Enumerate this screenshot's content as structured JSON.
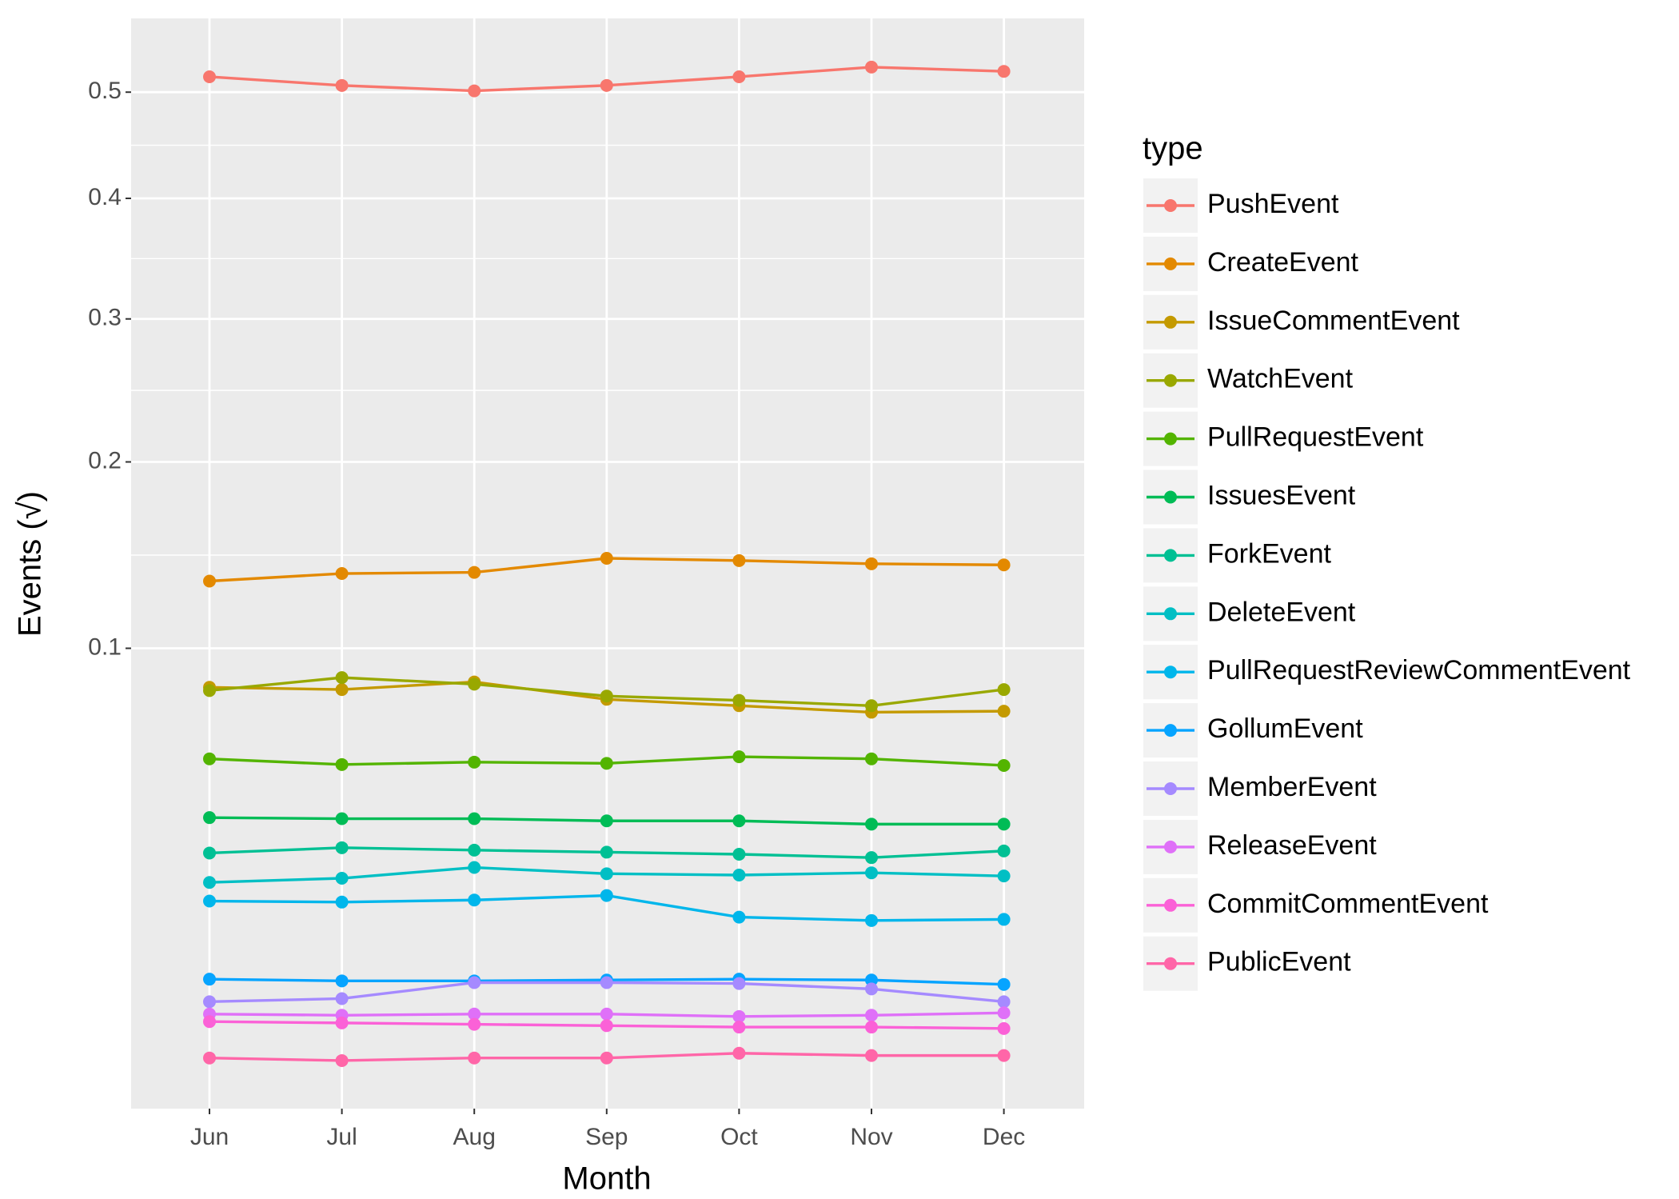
{
  "chart_data": {
    "type": "line",
    "x_label": "Month",
    "y_label": "Events (√)",
    "categories": [
      "Jun",
      "Jul",
      "Aug",
      "Sep",
      "Oct",
      "Nov",
      "Dec"
    ],
    "y_scale": "sqrt",
    "ylim": [
      0,
      0.576
    ],
    "yticks": [
      0.1,
      0.2,
      0.3,
      0.4,
      0.5
    ],
    "grid": true,
    "legend_title": "type",
    "legend_position": "right",
    "series": [
      {
        "name": "PushEvent",
        "color": "#F8766D",
        "values": [
          0.5154,
          0.5067,
          0.5013,
          0.5067,
          0.5154,
          0.5252,
          0.5209
        ]
      },
      {
        "name": "CreateEvent",
        "color": "#E38900",
        "values": [
          0.1321,
          0.136,
          0.1366,
          0.144,
          0.1428,
          0.1411,
          0.1405
        ]
      },
      {
        "name": "IssueCommentEvent",
        "color": "#C49A00",
        "values": [
          0.0834,
          0.0825,
          0.0856,
          0.0786,
          0.0761,
          0.0736,
          0.074
        ]
      },
      {
        "name": "WatchEvent",
        "color": "#99A800",
        "values": [
          0.0821,
          0.0874,
          0.0847,
          0.0799,
          0.0782,
          0.0761,
          0.0825
        ]
      },
      {
        "name": "PullRequestEvent",
        "color": "#53B400",
        "values": [
          0.0569,
          0.055,
          0.0558,
          0.0554,
          0.0576,
          0.0569,
          0.0547
        ]
      },
      {
        "name": "IssuesEvent",
        "color": "#00BC56",
        "values": [
          0.0389,
          0.0386,
          0.0386,
          0.038,
          0.038,
          0.0371,
          0.0371
        ]
      },
      {
        "name": "ForkEvent",
        "color": "#00C094",
        "values": [
          0.0297,
          0.031,
          0.0304,
          0.0299,
          0.0294,
          0.0286,
          0.0302
        ]
      },
      {
        "name": "DeleteEvent",
        "color": "#00BFC4",
        "values": [
          0.023,
          0.0239,
          0.0263,
          0.0249,
          0.0246,
          0.0251,
          0.0244
        ]
      },
      {
        "name": "PullRequestReviewCommentEvent",
        "color": "#00B6EB",
        "values": [
          0.0192,
          0.019,
          0.0194,
          0.0203,
          0.0162,
          0.0156,
          0.0158
        ]
      },
      {
        "name": "GollumEvent",
        "color": "#06A4FF",
        "values": [
          0.007,
          0.0068,
          0.0068,
          0.0069,
          0.007,
          0.0069,
          0.0064
        ]
      },
      {
        "name": "MemberEvent",
        "color": "#A58AFF",
        "values": [
          0.0046,
          0.0049,
          0.0066,
          0.0066,
          0.0065,
          0.0059,
          0.0046
        ]
      },
      {
        "name": "ReleaseEvent",
        "color": "#DF70F8",
        "values": [
          0.0035,
          0.0034,
          0.0035,
          0.0035,
          0.0033,
          0.0034,
          0.0036
        ]
      },
      {
        "name": "CommitCommentEvent",
        "color": "#FB61D7",
        "values": [
          0.0029,
          0.0028,
          0.0027,
          0.0026,
          0.0025,
          0.0025,
          0.0024
        ]
      },
      {
        "name": "PublicEvent",
        "color": "#FF66A8",
        "values": [
          0.0008,
          0.0007,
          0.0008,
          0.0008,
          0.001,
          0.0009,
          0.0009
        ]
      }
    ]
  }
}
